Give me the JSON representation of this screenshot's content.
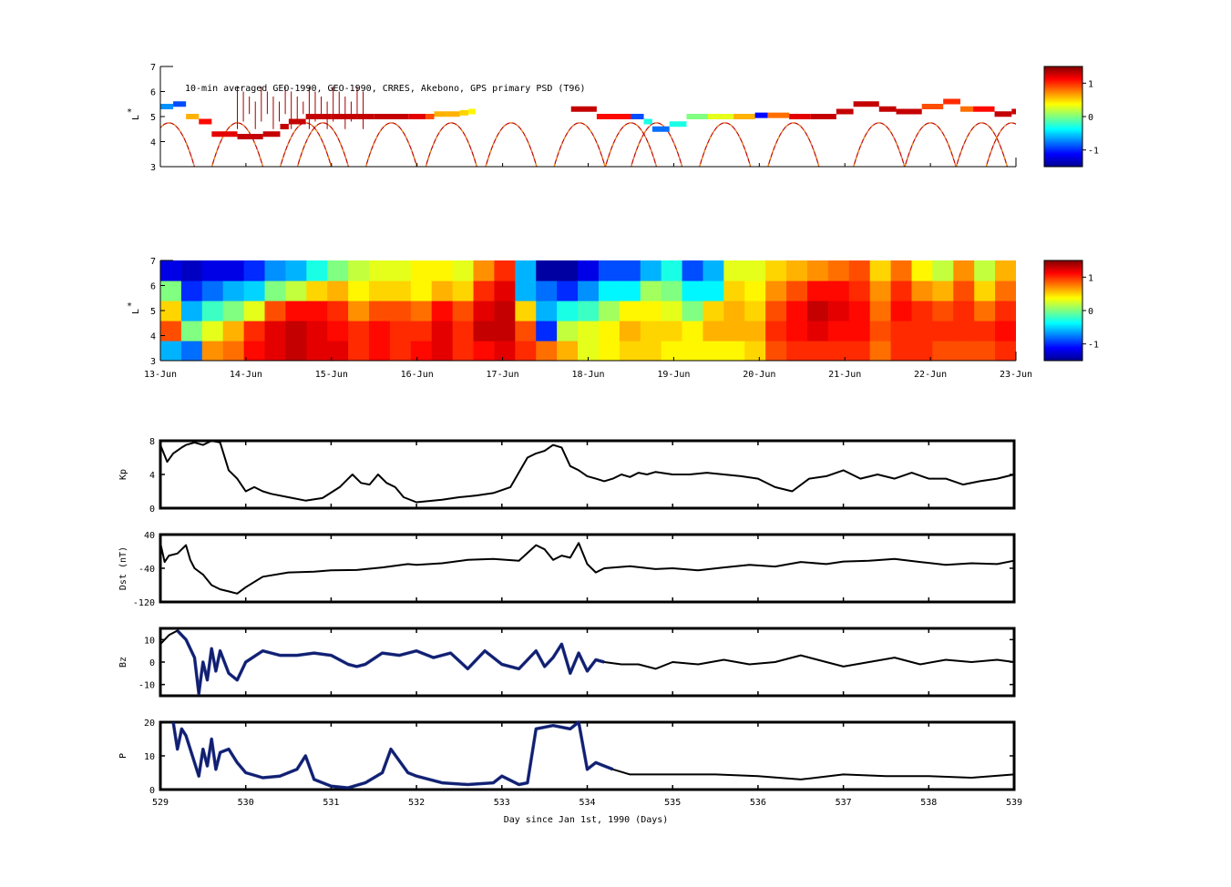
{
  "chart_data": [
    {
      "id": "psd_obs",
      "type": "heatmap",
      "title": "10-min averaged GEO-1990, GEO-1990, CRRES, Akebono, GPS  primary PSD (T96)",
      "ylabel": "L",
      "ylabel_superscript": "*",
      "ylim": [
        3,
        7
      ],
      "yticks": [
        "3",
        "4",
        "5",
        "6",
        "7"
      ],
      "xlim": [
        0,
        10
      ],
      "colorbar": {
        "ticks": [
          "1",
          "0",
          "-1"
        ],
        "values": [
          1,
          0,
          -1
        ],
        "range": [
          -1.5,
          1.5
        ]
      },
      "track": [
        [
          0.0,
          5.4,
          -0.7
        ],
        [
          0.15,
          5.5,
          -0.9
        ],
        [
          0.3,
          5.0,
          0.6
        ],
        [
          0.45,
          4.8,
          1.1
        ],
        [
          0.6,
          4.3,
          1.2
        ],
        [
          0.9,
          4.2,
          1.3
        ],
        [
          1.2,
          4.3,
          1.3
        ],
        [
          1.4,
          4.6,
          1.3
        ],
        [
          1.5,
          4.8,
          1.3
        ],
        [
          1.7,
          5.0,
          1.3
        ],
        [
          2.0,
          5.0,
          1.3
        ],
        [
          2.3,
          5.0,
          1.3
        ],
        [
          2.5,
          5.0,
          1.3
        ],
        [
          2.9,
          5.0,
          1.2
        ],
        [
          3.1,
          5.0,
          0.9
        ],
        [
          3.2,
          5.1,
          0.6
        ],
        [
          3.35,
          5.1,
          0.6
        ],
        [
          3.5,
          5.15,
          0.5
        ],
        [
          3.6,
          5.2,
          0.4
        ],
        [
          4.8,
          5.3,
          1.3
        ],
        [
          5.1,
          5.0,
          1.1
        ],
        [
          5.5,
          5.0,
          -0.9
        ],
        [
          5.65,
          4.8,
          -0.3
        ],
        [
          5.75,
          4.5,
          -0.8
        ],
        [
          5.95,
          4.7,
          -0.3
        ],
        [
          6.15,
          5.0,
          0.0
        ],
        [
          6.4,
          5.0,
          0.3
        ],
        [
          6.7,
          5.0,
          0.6
        ],
        [
          6.95,
          5.05,
          -1.1
        ],
        [
          7.1,
          5.05,
          0.8
        ],
        [
          7.35,
          5.0,
          1.2
        ],
        [
          7.6,
          5.0,
          1.3
        ],
        [
          7.9,
          5.2,
          1.3
        ],
        [
          8.1,
          5.5,
          1.3
        ],
        [
          8.4,
          5.3,
          1.3
        ],
        [
          8.6,
          5.2,
          1.3
        ],
        [
          8.9,
          5.4,
          0.9
        ],
        [
          9.15,
          5.6,
          1.0
        ],
        [
          9.35,
          5.3,
          0.8
        ],
        [
          9.5,
          5.3,
          1.1
        ],
        [
          9.75,
          5.1,
          1.3
        ],
        [
          9.95,
          5.2,
          1.3
        ]
      ]
    },
    {
      "id": "psd_model",
      "type": "heatmap",
      "ylabel": "L",
      "ylabel_superscript": "*",
      "ylim": [
        3,
        7
      ],
      "yticks": [
        "3",
        "4",
        "5",
        "6",
        "7"
      ],
      "xlim": [
        0,
        10
      ],
      "xticks": [
        "13-Jun",
        "14-Jun",
        "15-Jun",
        "16-Jun",
        "17-Jun",
        "18-Jun",
        "19-Jun",
        "20-Jun",
        "21-Jun",
        "22-Jun",
        "23-Jun"
      ],
      "colorbar": {
        "ticks": [
          "1",
          "0",
          "-1"
        ],
        "values": [
          1,
          0,
          -1
        ],
        "range": [
          -1.5,
          1.5
        ]
      },
      "columns": [
        [
          -0.6,
          0.9,
          0.5,
          0.0,
          -1.2
        ],
        [
          -0.8,
          0.0,
          -0.6,
          -1.0,
          -1.3
        ],
        [
          0.7,
          0.3,
          -0.2,
          -0.8,
          -1.2
        ],
        [
          0.8,
          0.6,
          0.0,
          -0.6,
          -1.2
        ],
        [
          1.1,
          1.0,
          0.3,
          -0.5,
          -1.0
        ],
        [
          1.2,
          1.2,
          0.9,
          0.0,
          -0.7
        ],
        [
          1.3,
          1.3,
          1.1,
          0.2,
          -0.6
        ],
        [
          1.2,
          1.2,
          1.1,
          0.5,
          -0.3
        ],
        [
          1.2,
          1.1,
          1.0,
          0.6,
          0.0
        ],
        [
          1.0,
          1.0,
          0.7,
          0.4,
          0.2
        ],
        [
          1.1,
          1.1,
          0.9,
          0.5,
          0.3
        ],
        [
          1.0,
          1.0,
          0.9,
          0.5,
          0.3
        ],
        [
          1.1,
          1.0,
          0.8,
          0.4,
          0.4
        ],
        [
          1.2,
          1.2,
          1.1,
          0.6,
          0.4
        ],
        [
          1.0,
          1.0,
          0.9,
          0.5,
          0.3
        ],
        [
          1.1,
          1.3,
          1.2,
          1.0,
          0.7
        ],
        [
          1.2,
          1.3,
          1.3,
          1.2,
          1.0
        ],
        [
          1.0,
          0.9,
          0.5,
          -0.6,
          -0.6
        ],
        [
          0.8,
          -1.0,
          -0.6,
          -0.8,
          -1.4
        ],
        [
          0.6,
          0.2,
          -0.3,
          -1.0,
          -1.4
        ],
        [
          0.3,
          0.3,
          -0.2,
          -0.7,
          -1.2
        ],
        [
          0.4,
          0.4,
          0.1,
          -0.4,
          -0.9
        ],
        [
          0.5,
          0.6,
          0.4,
          -0.4,
          -0.9
        ],
        [
          0.5,
          0.5,
          0.4,
          0.1,
          -0.6
        ],
        [
          0.4,
          0.5,
          0.3,
          0.0,
          -0.3
        ],
        [
          0.4,
          0.4,
          0.0,
          -0.4,
          -0.9
        ],
        [
          0.4,
          0.6,
          0.5,
          -0.4,
          -0.6
        ],
        [
          0.4,
          0.6,
          0.6,
          0.5,
          0.3
        ],
        [
          0.5,
          0.6,
          0.5,
          0.4,
          0.3
        ],
        [
          0.9,
          1.0,
          0.9,
          0.7,
          0.5
        ],
        [
          1.0,
          1.1,
          1.1,
          0.9,
          0.6
        ],
        [
          1.0,
          1.2,
          1.3,
          1.1,
          0.7
        ],
        [
          1.0,
          1.1,
          1.2,
          1.1,
          0.8
        ],
        [
          1.0,
          1.1,
          1.1,
          1.0,
          0.9
        ],
        [
          0.8,
          0.9,
          0.8,
          0.7,
          0.5
        ],
        [
          1.0,
          1.0,
          1.1,
          1.0,
          0.8
        ],
        [
          1.0,
          1.0,
          1.0,
          0.7,
          0.4
        ],
        [
          0.9,
          1.0,
          0.9,
          0.6,
          0.2
        ],
        [
          0.9,
          1.0,
          1.0,
          0.9,
          0.7
        ],
        [
          0.9,
          1.0,
          0.8,
          0.5,
          0.2
        ],
        [
          1.0,
          1.1,
          1.0,
          0.8,
          0.6
        ]
      ]
    },
    {
      "id": "kp",
      "type": "line",
      "ylabel": "Kp",
      "ylim": [
        0,
        8
      ],
      "yticks": [
        "0",
        "4",
        "8"
      ],
      "xlim": [
        529,
        539
      ],
      "series": [
        {
          "name": "Kp",
          "x": [
            529.0,
            529.08,
            529.15,
            529.25,
            529.3,
            529.4,
            529.5,
            529.6,
            529.7,
            529.8,
            529.9,
            530.0,
            530.1,
            530.2,
            530.3,
            530.5,
            530.7,
            530.9,
            531.1,
            531.25,
            531.35,
            531.45,
            531.55,
            531.65,
            531.75,
            531.85,
            532.0,
            532.3,
            532.5,
            532.7,
            532.9,
            533.1,
            533.3,
            533.4,
            533.5,
            533.6,
            533.7,
            533.8,
            533.9,
            534.0,
            534.1,
            534.2,
            534.3,
            534.4,
            534.5,
            534.6,
            534.7,
            534.8,
            535.0,
            535.2,
            535.4,
            535.6,
            535.8,
            536.0,
            536.2,
            536.4,
            536.6,
            536.8,
            537.0,
            537.2,
            537.4,
            537.6,
            537.8,
            538.0,
            538.2,
            538.4,
            538.6,
            538.8,
            539.0
          ],
          "values": [
            7.5,
            5.5,
            6.5,
            7.2,
            7.5,
            7.8,
            7.5,
            8.0,
            7.8,
            4.5,
            3.5,
            2.0,
            2.5,
            2.0,
            1.7,
            1.3,
            0.9,
            1.2,
            2.5,
            4.0,
            3.0,
            2.8,
            4.0,
            3.0,
            2.5,
            1.3,
            0.7,
            1.0,
            1.3,
            1.5,
            1.8,
            2.5,
            6.0,
            6.5,
            6.8,
            7.5,
            7.2,
            5.0,
            4.5,
            3.8,
            3.5,
            3.2,
            3.5,
            4.0,
            3.7,
            4.2,
            4.0,
            4.3,
            4.0,
            4.0,
            4.2,
            4.0,
            3.8,
            3.5,
            2.5,
            2.0,
            3.5,
            3.8,
            4.5,
            3.5,
            4.0,
            3.5,
            4.2,
            3.5,
            3.5,
            2.8,
            3.2,
            3.5,
            4.0
          ]
        }
      ]
    },
    {
      "id": "dst",
      "type": "line",
      "ylabel": "Dst (nT)",
      "ylim": [
        -120,
        40
      ],
      "yticks": [
        "-120",
        "-40",
        "40"
      ],
      "xlim": [
        529,
        539
      ],
      "series": [
        {
          "name": "Dst",
          "x": [
            529.0,
            529.05,
            529.1,
            529.2,
            529.3,
            529.35,
            529.4,
            529.5,
            529.6,
            529.7,
            529.8,
            529.9,
            530.0,
            530.2,
            530.5,
            530.8,
            531.0,
            531.3,
            531.6,
            531.9,
            532.0,
            532.3,
            532.6,
            532.9,
            533.2,
            533.4,
            533.5,
            533.6,
            533.7,
            533.8,
            533.9,
            534.0,
            534.1,
            534.2,
            534.5,
            534.8,
            535.0,
            535.3,
            535.6,
            535.9,
            536.2,
            536.5,
            536.8,
            537.0,
            537.3,
            537.6,
            537.9,
            538.2,
            538.5,
            538.8,
            539.0
          ],
          "values": [
            20,
            -25,
            -10,
            -5,
            15,
            -20,
            -40,
            -55,
            -80,
            -90,
            -95,
            -100,
            -85,
            -60,
            -50,
            -48,
            -45,
            -44,
            -38,
            -30,
            -32,
            -28,
            -20,
            -18,
            -22,
            15,
            5,
            -20,
            -10,
            -15,
            20,
            -30,
            -50,
            -40,
            -35,
            -42,
            -40,
            -45,
            -38,
            -32,
            -36,
            -25,
            -30,
            -24,
            -22,
            -18,
            -25,
            -32,
            -28,
            -30,
            -22
          ]
        }
      ]
    },
    {
      "id": "bz",
      "type": "line",
      "ylabel": "Bz",
      "ylim": [
        -15,
        15
      ],
      "yticks": [
        "-10",
        "0",
        "10"
      ],
      "xlim": [
        529,
        539
      ],
      "series": [
        {
          "name": "Bz",
          "x": [
            529.0,
            529.1,
            529.2,
            529.3,
            529.4,
            529.45,
            529.5,
            529.55,
            529.6,
            529.65,
            529.7,
            529.8,
            529.9,
            530.0,
            530.2,
            530.4,
            530.6,
            530.8,
            531.0,
            531.2,
            531.3,
            531.4,
            531.6,
            531.8,
            532.0,
            532.2,
            532.4,
            532.6,
            532.8,
            533.0,
            533.2,
            533.4,
            533.5,
            533.6,
            533.7,
            533.8,
            533.9,
            534.0,
            534.1,
            534.2,
            534.4,
            534.6,
            534.8,
            535.0,
            535.3,
            535.6,
            535.9,
            536.2,
            536.5,
            536.8,
            537.0,
            537.3,
            537.6,
            537.9,
            538.2,
            538.5,
            538.8,
            539.0
          ],
          "values": [
            8,
            12,
            14,
            10,
            2,
            -14,
            0,
            -8,
            6,
            -4,
            5,
            -5,
            -8,
            0,
            5,
            3,
            3,
            4,
            3,
            -1,
            -2,
            -1,
            4,
            3,
            5,
            2,
            4,
            -3,
            5,
            -1,
            -3,
            5,
            -2,
            2,
            8,
            -5,
            4,
            -4,
            1,
            0,
            -1,
            -1,
            -3,
            0,
            -1,
            1,
            -1,
            0,
            3,
            0,
            -2,
            0,
            2,
            -1,
            1,
            0,
            1,
            0
          ]
        }
      ],
      "highlight_range": [
        529.15,
        534.25
      ],
      "highlight_color": "#10207a"
    },
    {
      "id": "p",
      "type": "line",
      "ylabel": "P",
      "xlabel": "Day since Jan 1st, 1990 (Days)",
      "ylim": [
        0,
        20
      ],
      "yticks": [
        "0",
        "10",
        "20"
      ],
      "xlim": [
        529,
        539
      ],
      "xticks": [
        "529",
        "530",
        "531",
        "532",
        "533",
        "534",
        "535",
        "536",
        "537",
        "538",
        "539"
      ],
      "series": [
        {
          "name": "P",
          "x": [
            529.15,
            529.2,
            529.25,
            529.3,
            529.4,
            529.45,
            529.5,
            529.55,
            529.6,
            529.65,
            529.7,
            529.8,
            529.9,
            530.0,
            530.2,
            530.4,
            530.6,
            530.7,
            530.8,
            531.0,
            531.2,
            531.4,
            531.6,
            531.7,
            531.9,
            532.0,
            532.3,
            532.6,
            532.9,
            533.0,
            533.2,
            533.3,
            533.4,
            533.6,
            533.8,
            533.9,
            534.0,
            534.1,
            534.2,
            534.3,
            534.5,
            534.8,
            535.0,
            535.5,
            536.0,
            536.5,
            537.0,
            537.5,
            538.0,
            538.5,
            539.0
          ],
          "values": [
            20,
            12,
            18,
            16,
            8,
            4,
            12,
            7,
            15,
            6,
            11,
            12,
            8,
            5,
            3.5,
            4,
            6,
            10,
            3,
            1,
            0.5,
            2,
            5,
            12,
            5,
            4,
            2,
            1.5,
            2,
            4,
            1.5,
            2,
            18,
            19,
            18,
            20,
            6,
            8,
            7,
            6,
            4.5,
            4.5,
            4.5,
            4.5,
            4,
            3,
            4.5,
            4,
            4,
            3.5,
            4.5
          ]
        }
      ],
      "highlight_range": [
        529.15,
        534.3
      ],
      "highlight_color": "#10207a"
    }
  ]
}
